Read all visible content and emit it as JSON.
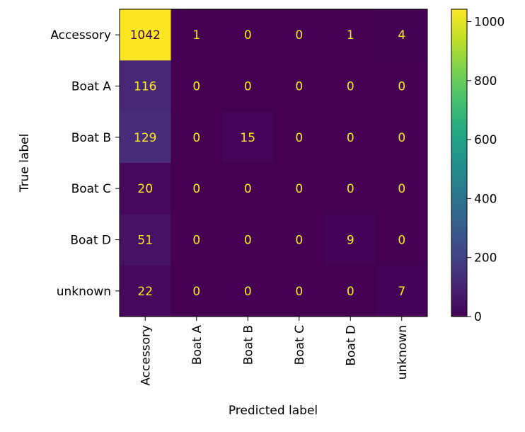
{
  "chart_data": {
    "type": "heatmap",
    "title": "",
    "xlabel": "Predicted label",
    "ylabel": "True label",
    "x_categories": [
      "Accessory",
      "Boat A",
      "Boat B",
      "Boat C",
      "Boat D",
      "unknown"
    ],
    "y_categories": [
      "Accessory",
      "Boat A",
      "Boat B",
      "Boat C",
      "Boat D",
      "unknown"
    ],
    "values": [
      [
        1042,
        1,
        0,
        0,
        1,
        4
      ],
      [
        116,
        0,
        0,
        0,
        0,
        0
      ],
      [
        129,
        0,
        15,
        0,
        0,
        0
      ],
      [
        20,
        0,
        0,
        0,
        0,
        0
      ],
      [
        51,
        0,
        0,
        0,
        9,
        0
      ],
      [
        22,
        0,
        0,
        0,
        0,
        7
      ]
    ],
    "colormap": "viridis",
    "colorbar": {
      "range": [
        0,
        1042
      ],
      "ticks": [
        0,
        200,
        400,
        600,
        800,
        1000
      ]
    },
    "colors": {
      "low": "#440154",
      "high": "#fde725",
      "text_on_dark": "#fde725",
      "text_on_light": "#440154"
    }
  }
}
